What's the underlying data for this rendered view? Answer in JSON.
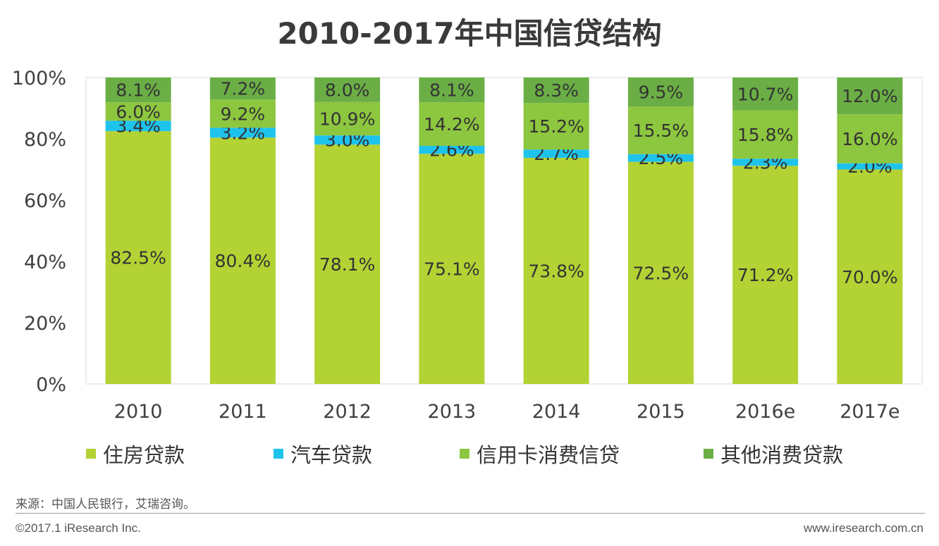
{
  "title": "2010-2017年中国信贷结构",
  "chart_data": {
    "type": "bar",
    "stacked": true,
    "categories": [
      "2010",
      "2011",
      "2012",
      "2013",
      "2014",
      "2015",
      "2016e",
      "2017e"
    ],
    "series": [
      {
        "name": "住房贷款",
        "color": "#b3d234",
        "values": [
          82.5,
          80.4,
          78.1,
          75.1,
          73.8,
          72.5,
          71.2,
          70.0
        ]
      },
      {
        "name": "汽车贷款",
        "color": "#1ec3ec",
        "values": [
          3.4,
          3.2,
          3.0,
          2.6,
          2.7,
          2.5,
          2.3,
          2.0
        ]
      },
      {
        "name": "信用卡消费信贷",
        "color": "#8dc63f",
        "values": [
          6.0,
          9.2,
          10.9,
          14.2,
          15.2,
          15.5,
          15.8,
          16.0
        ]
      },
      {
        "name": "其他消费贷款",
        "color": "#6aae45",
        "values": [
          8.1,
          7.2,
          8.0,
          8.1,
          8.3,
          9.5,
          10.7,
          12.0
        ]
      }
    ],
    "ylim": [
      0,
      100
    ],
    "yticks": [
      "0%",
      "20%",
      "40%",
      "60%",
      "80%",
      "100%"
    ],
    "xlabel": "",
    "ylabel": "",
    "legend_position": "bottom",
    "grid": false
  },
  "footer": {
    "source": "来源：中国人民银行，艾瑞咨询。",
    "copyright": "©2017.1 iResearch Inc.",
    "website": "www.iresearch.com.cn"
  }
}
